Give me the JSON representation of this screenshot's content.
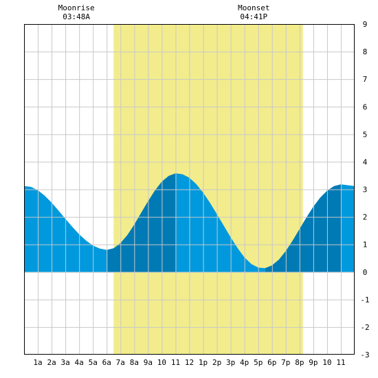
{
  "chart_data": {
    "type": "area",
    "title": "",
    "xlabel": "",
    "ylabel": "",
    "xlim": [
      0,
      24
    ],
    "ylim": [
      -3,
      9
    ],
    "grid": true,
    "x_tick_labels": [
      "1a",
      "2a",
      "3a",
      "4a",
      "5a",
      "6a",
      "7a",
      "8a",
      "9a",
      "10",
      "11",
      "12",
      "1p",
      "2p",
      "3p",
      "4p",
      "5p",
      "6p",
      "7p",
      "8p",
      "9p",
      "10",
      "11"
    ],
    "y_ticks": [
      -3,
      -2,
      -1,
      0,
      1,
      2,
      3,
      4,
      5,
      6,
      7,
      8,
      9
    ],
    "daylight": {
      "start": 6.5,
      "end": 20.25,
      "color": "#f2ec8c"
    },
    "annotations": [
      {
        "title": "Moonrise",
        "time": "03:48A",
        "x": 3.8
      },
      {
        "title": "Moonset",
        "time": "04:41P",
        "x": 16.68
      }
    ],
    "colors": {
      "falling": "#0099dd",
      "rising": "#007ab5",
      "grid": "#c8c8c8",
      "border": "#000000"
    },
    "series": [
      {
        "x": [
          0,
          0.5,
          1,
          1.5,
          2,
          2.5,
          3,
          3.5,
          4,
          4.5,
          5,
          5.5,
          6,
          6.5,
          7,
          7.5,
          8,
          8.5,
          9,
          9.5,
          10,
          10.5,
          11,
          11.5,
          12,
          12.5,
          13,
          13.5,
          14,
          14.5,
          15,
          15.5,
          16,
          16.5,
          17,
          17.5,
          18,
          18.5,
          19,
          19.5,
          20,
          20.5,
          21,
          21.5,
          22,
          22.5,
          23,
          23.5,
          24
        ],
        "y": [
          3.12,
          3.09,
          2.97,
          2.77,
          2.52,
          2.23,
          1.93,
          1.64,
          1.37,
          1.14,
          0.96,
          0.85,
          0.8,
          0.86,
          1.05,
          1.34,
          1.72,
          2.15,
          2.57,
          2.96,
          3.28,
          3.49,
          3.58,
          3.55,
          3.42,
          3.19,
          2.88,
          2.51,
          2.1,
          1.68,
          1.26,
          0.87,
          0.53,
          0.29,
          0.16,
          0.14,
          0.24,
          0.45,
          0.76,
          1.14,
          1.56,
          1.98,
          2.37,
          2.7,
          2.95,
          3.12,
          3.18,
          3.15,
          3.12
        ]
      }
    ]
  }
}
